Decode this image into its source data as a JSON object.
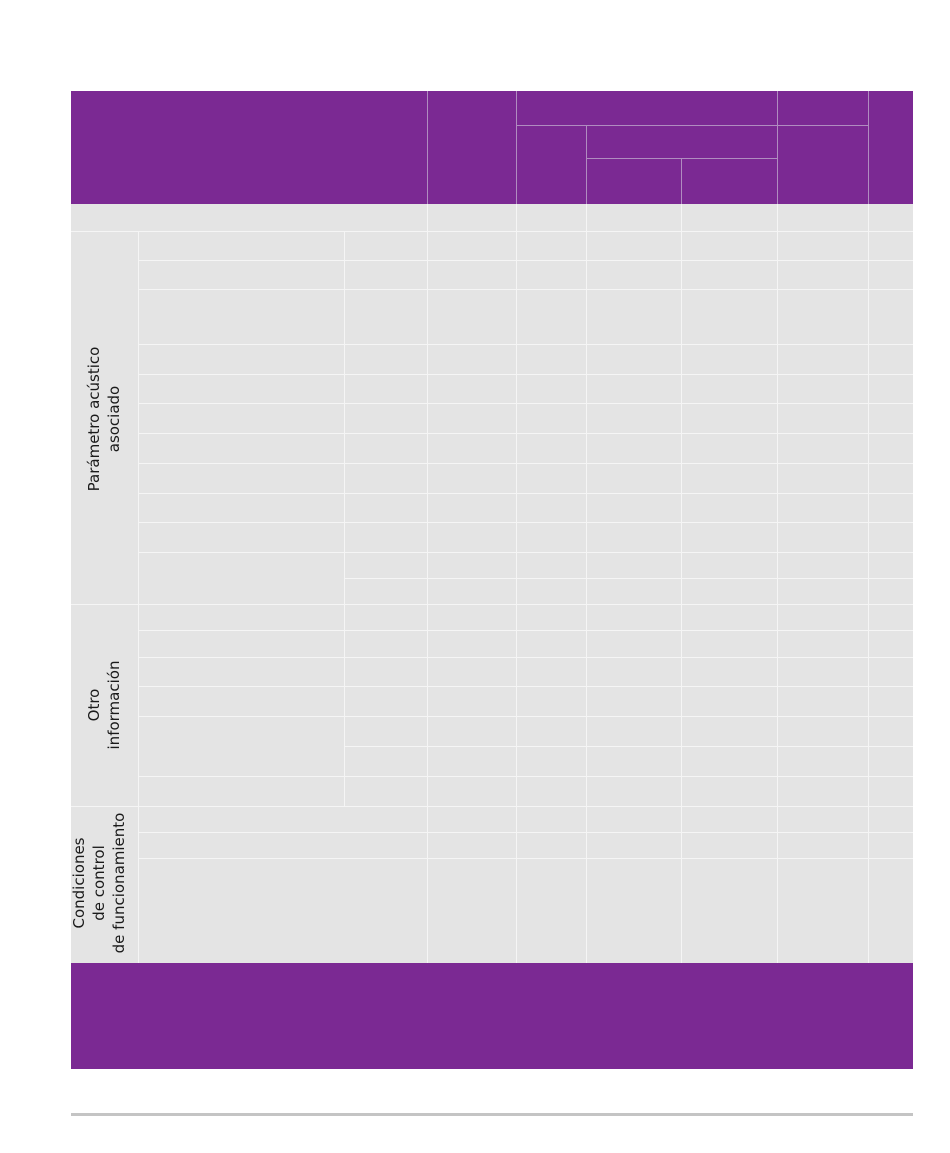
{
  "groups": {
    "parametro_acustico": [
      "Parámetro acústico",
      "asociado"
    ],
    "otro_informacion": [
      "Otro",
      "información"
    ],
    "condiciones": [
      "Condiciones",
      "de control",
      "de funcionamiento"
    ]
  }
}
